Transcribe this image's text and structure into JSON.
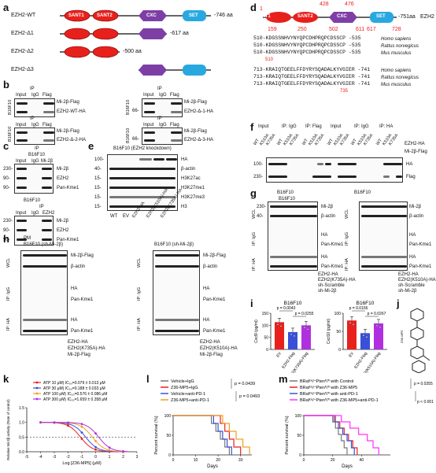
{
  "panels": {
    "a": "a",
    "b": "b",
    "c": "c",
    "d": "d",
    "e": "e",
    "f": "f",
    "g": "g",
    "h": "h",
    "i": "i",
    "j": "j",
    "k": "k",
    "l": "l",
    "m": "m"
  },
  "domain_names": {
    "sant1": "SANT1",
    "sant2": "SANT2",
    "cxc": "CXC",
    "set": "SET"
  },
  "constructs": [
    {
      "name": "EZH2-WT",
      "len": "-746 aa"
    },
    {
      "name": "EZH2-Δ1",
      "len": "-617 aa"
    },
    {
      "name": "EZH2-Δ2",
      "len": "-500 aa"
    },
    {
      "name": "EZH2-Δ3",
      "len": ""
    }
  ],
  "panel_b": {
    "cell": "B16F10",
    "ip": "IP",
    "cols": [
      "Input",
      "IgG",
      "Flag"
    ],
    "blots": [
      {
        "mw": "66-",
        "top": "Mi-2β-Flag",
        "bottom": "EZH2-WT-HA"
      },
      {
        "mw": "66-",
        "top": "Mi-2β-Flag",
        "bottom": "EZH2-Δ-1-HA"
      },
      {
        "mw": "66-",
        "top": "Mi-2β-Flag",
        "bottom": "EZH2-Δ-2-HA"
      },
      {
        "mw": "66-",
        "top": "Mi-2β-Flag",
        "bottom": "EZH2-Δ-3-HA"
      }
    ]
  },
  "panel_c": {
    "cell": "B16F10",
    "ip": "IP",
    "cols": [
      "Input",
      "IgG",
      "Mi-2β"
    ],
    "blot1": {
      "mw": [
        "230-",
        "90-",
        "90-"
      ],
      "labels": [
        "Mi-2β",
        "EZH2",
        "Pan-Kme1"
      ]
    },
    "blot2": {
      "cols": [
        "Input",
        "IgG",
        "EZH2"
      ],
      "mw": [
        "230-",
        "90-",
        "90-"
      ],
      "labels": [
        "Mi-2β",
        "EZH2",
        "Pan-Kme1"
      ]
    }
  },
  "panel_d": {
    "pos_top": [
      "1",
      "428",
      "476",
      "-751aa"
    ],
    "pos_bot": [
      "159",
      "250",
      "502",
      "611",
      "617",
      "728"
    ],
    "protein": "EZH2",
    "seq1": [
      {
        "a": "510-",
        "s": "KDGSSNHVYNYQPCDHPRQPCDSSCP -535",
        "sp": "Homo sapiens"
      },
      {
        "a": "510-",
        "s": "KDGSSNHVYNYQPCDHPRQPCDSSCP -535",
        "sp": "Rattus norvegicus"
      },
      {
        "a": "510-",
        "s": "KDGSSNHVYNYQPCDHPRQPCDSSCP -535",
        "sp": "Mus musculus"
      }
    ],
    "seq1_pos": "510",
    "seq2": [
      {
        "a": "713-",
        "s": "KRAIQTGEELFFDYRYSQADALKYVGIER -741",
        "sp": "Homo sapiens"
      },
      {
        "a": "713-",
        "s": "KRAIQTGEELFFDYRYSQADALKYVGIER -741",
        "sp": "Rattus norvegicus"
      },
      {
        "a": "713-",
        "s": "KRAIQTGEELFFDYRYSQADALKYVGIER -741",
        "sp": "Mus musculus"
      }
    ],
    "seq2_pos": "735"
  },
  "panel_e": {
    "title": "B16F10 (EZH2 knockdown)",
    "mw": [
      "100-",
      "40-",
      "15-",
      "15-",
      "15-",
      "15-"
    ],
    "labels": [
      "HA",
      "β-actin",
      "H3K27ac",
      "H3K27me1",
      "H3K27me3",
      "H3"
    ],
    "lanes": [
      "WT",
      "EV",
      "EZH2-HA",
      "EZH2(K510A)-HA",
      "EZH2(K735A)-HA"
    ]
  },
  "panel_f": {
    "groups": [
      "Input",
      "IP: IgG",
      "IP: Flag",
      "Input",
      "IP: IgG",
      "IP: HA"
    ],
    "lanes": [
      "WT",
      "K510A",
      "K735A"
    ],
    "row1": "EZH2-HA",
    "row2": "Mi-2β-Flag",
    "mw": [
      "100-",
      "230-"
    ],
    "labels": [
      "HA",
      "Flag"
    ]
  },
  "panel_g": {
    "cell": "B16F10",
    "left": {
      "mw": [
        "230-",
        "40-",
        "-",
        "-",
        "-",
        "-"
      ],
      "labels": [
        "Mi-2β",
        "β-actin",
        "HA",
        "Pan-Kme1",
        "HA",
        "Pan-Kme1"
      ]
    },
    "right": {
      "labels": [
        "Mi-2β",
        "β-actin",
        "HA",
        "Pan-Kme1",
        "HA",
        "Pan-Kme1"
      ]
    },
    "side": [
      "WCL",
      "IP: IgG",
      "IP: HA"
    ],
    "cond_left": [
      "EZH2-HA",
      "EZH2(K735A)-HA",
      "sh-Scramble",
      "sh-Mi-2β"
    ],
    "cond_right": [
      "EZH2-HA",
      "EZH2(K510A)-HA",
      "sh-Scramble",
      "sh-Mi-2β"
    ]
  },
  "panel_h": {
    "pm": "PM",
    "cell": "B16F10 (sh-Mi-2β)",
    "labels": [
      "Mi-2β-Flag",
      "β-actin",
      "HA",
      "Pan-Kme1",
      "HA",
      "Pan-Kme1"
    ],
    "side": [
      "WCL",
      "IP: IgG",
      "IP: HA"
    ],
    "cond_left": [
      "EZH2-HA",
      "EZH2(K735A)-HA",
      "Mi-2β-Flag"
    ],
    "cond_right": [
      "EZH2-HA",
      "EZH2(K510A)-HA",
      "Mi-2β-Flag"
    ]
  },
  "chart_data": [
    {
      "type": "bar",
      "panel": "i-left",
      "title": "B16F10",
      "categories": [
        "EV",
        "EZH2-Flag",
        "EZH2(K735A)-Flag"
      ],
      "values": [
        113,
        72,
        100
      ],
      "ylim": [
        0,
        150
      ],
      "ylabel": "Cxcl9 (pg/ml)",
      "yticks": [
        "0",
        "50",
        "100",
        "150"
      ],
      "pvalues": [
        "p = 0.0043",
        "p = 0.0255"
      ],
      "colors": [
        "#e8201c",
        "#3a50d8",
        "#b030e0"
      ]
    },
    {
      "type": "bar",
      "panel": "i-right",
      "title": "B16F10",
      "categories": [
        "EV",
        "EZH2-Flag",
        "EZH2(K510A)-Flag"
      ],
      "values": [
        80,
        45,
        72
      ],
      "ylim": [
        0,
        100
      ],
      "ylabel": "Cxcl10 (pg/ml)",
      "yticks": [
        "0",
        "50",
        "100"
      ],
      "pvalues": [
        "p = 0.0166",
        "p = 0.0267"
      ],
      "colors": [
        "#e8201c",
        "#3a50d8",
        "#b030e0"
      ]
    },
    {
      "type": "line",
      "panel": "k",
      "xlabel": "Log [Z36-MP5] (μM)",
      "ylabel": "Relative Mi-2β activity (Rate of control)",
      "xlim": [
        -5,
        3
      ],
      "ylim": [
        0,
        1.5
      ],
      "xticks": [
        "-5",
        "-4",
        "-3",
        "-2",
        "-1",
        "0",
        "1",
        "2",
        "3"
      ],
      "yticks": [
        "0.0",
        "0.5",
        "1.0",
        "1.5"
      ],
      "series": [
        {
          "name": "ATP 10 μM) IC₅₀=0.079 ± 0.013 μM",
          "color": "#e8201c",
          "ic50": 0.079
        },
        {
          "name": "ATP 30 μM) IC₅₀=0.188 ± 0.033 μM",
          "color": "#3a50d8",
          "ic50": 0.188
        },
        {
          "name": "ATP 100 μM) IC₅₀=0.576 ± 0.086 μM",
          "color": "#f0a020",
          "ic50": 0.576
        },
        {
          "name": "ATP 300 μM) IC₅₀=1.659 ± 0.358 μM",
          "color": "#b030e0",
          "ic50": 1.659
        }
      ]
    },
    {
      "type": "line",
      "panel": "l",
      "subtype": "survival",
      "xlabel": "Days",
      "ylabel": "Percent survival (%)",
      "xlim": [
        0,
        35
      ],
      "ylim": [
        0,
        100
      ],
      "xticks": [
        "0",
        "10",
        "20",
        "30"
      ],
      "yticks": [
        "0",
        "50",
        "100"
      ],
      "series": [
        {
          "name": "Vehicle+IgG",
          "color": "#777777",
          "x": [
            0,
            17,
            19,
            21,
            23,
            25
          ],
          "y": [
            100,
            80,
            60,
            40,
            20,
            0
          ]
        },
        {
          "name": "Z36-MP5+IgG",
          "color": "#e8201c",
          "x": [
            0,
            21,
            23,
            25,
            27,
            30
          ],
          "y": [
            100,
            80,
            60,
            40,
            20,
            0
          ]
        },
        {
          "name": "Vehicle+anti-PD-1",
          "color": "#3a50d8",
          "x": [
            0,
            18,
            20,
            22,
            24,
            26
          ],
          "y": [
            100,
            80,
            60,
            40,
            20,
            0
          ]
        },
        {
          "name": "Z36-MP5+anti-PD-1",
          "color": "#f0a020",
          "x": [
            0,
            22,
            25,
            28,
            31,
            34
          ],
          "y": [
            100,
            80,
            60,
            40,
            20,
            0
          ]
        }
      ],
      "pvalues": [
        "p = 0.0439",
        "p = 0.0493"
      ]
    },
    {
      "type": "line",
      "panel": "m",
      "subtype": "survival",
      "xlabel": "Days",
      "ylabel": "Percent survival (%)",
      "xlim": [
        0,
        60
      ],
      "ylim": [
        0,
        100
      ],
      "xticks": [
        "0",
        "20",
        "40"
      ],
      "yticks": [
        "0",
        "50",
        "100"
      ],
      "series": [
        {
          "name": "BRafᶜᵃ/⁺Ptenᶠˡ/ᶠˡ with Control",
          "color": "#777777",
          "x": [
            0,
            20,
            22,
            24,
            26,
            28,
            30
          ],
          "y": [
            100,
            84,
            68,
            52,
            36,
            18,
            0
          ]
        },
        {
          "name": "BRafᶜᵃ/⁺Ptenᶠˡ/ᶠˡ with Z36-MP5",
          "color": "#e8201c",
          "x": [
            0,
            22,
            25,
            28,
            31,
            34,
            37
          ],
          "y": [
            100,
            84,
            68,
            52,
            36,
            18,
            0
          ]
        },
        {
          "name": "BRafᶜᵃ/⁺Ptenᶠˡ/ᶠˡ with anti-PD-1",
          "color": "#3a50d8",
          "x": [
            0,
            21,
            24,
            27,
            30,
            33,
            35
          ],
          "y": [
            100,
            84,
            68,
            52,
            36,
            18,
            0
          ]
        },
        {
          "name": "BRafᶜᵃ/⁺Ptenᶠˡ/ᶠˡ with Z36-MP5+anti-PD-1",
          "color": "#ff30ff",
          "x": [
            0,
            26,
            32,
            38,
            44,
            48,
            52
          ],
          "y": [
            100,
            84,
            68,
            52,
            36,
            18,
            0
          ]
        }
      ],
      "pvalues": [
        "p = 0.0355",
        "p < 0.001"
      ]
    }
  ],
  "panel_j": {
    "label": "Z36-MP5"
  }
}
